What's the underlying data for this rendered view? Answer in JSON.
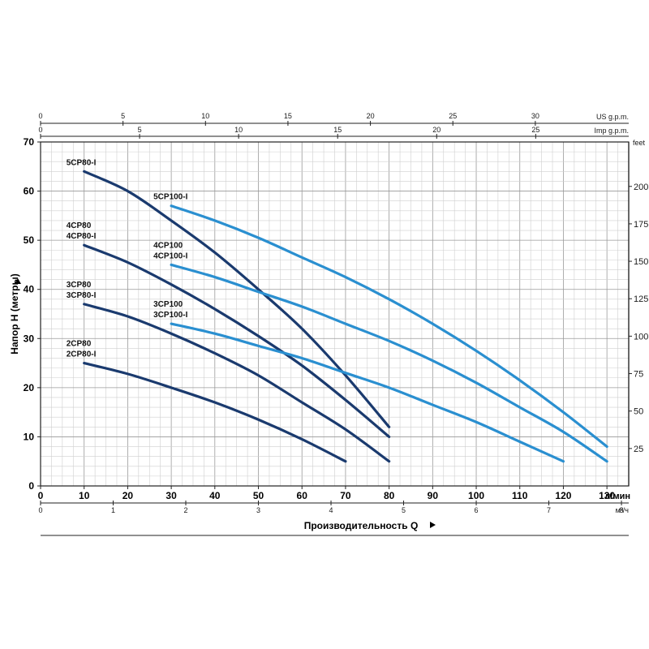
{
  "chart_data": {
    "type": "line",
    "ylabel": "Напор H (метры)",
    "xlabel": "Производительность Q",
    "x_unit": "л/мин",
    "xlim": [
      0,
      135
    ],
    "ylim": [
      0,
      70
    ],
    "x_ticks": [
      0,
      10,
      20,
      30,
      40,
      50,
      60,
      70,
      80,
      90,
      100,
      110,
      120,
      130
    ],
    "y_ticks": [
      0,
      10,
      20,
      30,
      40,
      50,
      60,
      70
    ],
    "grid": true,
    "secondary_axes": {
      "feet": {
        "unit": "feet",
        "ticks": [
          "25",
          "50",
          "75",
          "100",
          "125",
          "150",
          "175",
          "200"
        ]
      },
      "us_gpm": {
        "unit": "US g.p.m.",
        "ticks": [
          "0",
          "5",
          "10",
          "15",
          "20",
          "25",
          "30"
        ]
      },
      "imp_gpm": {
        "unit": "Imp g.p.m.",
        "ticks": [
          "0",
          "5",
          "10",
          "15",
          "20",
          "25"
        ]
      },
      "m3h": {
        "unit": "м³/ч",
        "ticks": [
          "0",
          "1",
          "2",
          "3",
          "4",
          "5",
          "6",
          "7",
          "8"
        ]
      }
    },
    "series": [
      {
        "name": "5CP80-I",
        "label_lines": [
          "5CP80-I"
        ],
        "color": "#1a3a6e",
        "x": [
          10,
          20,
          30,
          40,
          50,
          60,
          70,
          80
        ],
        "y": [
          64,
          60,
          54,
          47.5,
          40,
          32,
          22.5,
          12
        ]
      },
      {
        "name": "4CP80 / 4CP80-I",
        "label_lines": [
          "4CP80",
          "4CP80-I"
        ],
        "color": "#1a3a6e",
        "x": [
          10,
          20,
          30,
          40,
          50,
          60,
          70,
          80
        ],
        "y": [
          49,
          45.5,
          41,
          36,
          30.5,
          24.5,
          17.5,
          10
        ]
      },
      {
        "name": "3CP80 / 3CP80-I",
        "label_lines": [
          "3CP80",
          "3CP80-I"
        ],
        "color": "#1a3a6e",
        "x": [
          10,
          20,
          30,
          40,
          50,
          60,
          70,
          80
        ],
        "y": [
          37,
          34.5,
          31,
          27,
          22.5,
          17,
          11.5,
          5
        ]
      },
      {
        "name": "2CP80 / 2CP80-I",
        "label_lines": [
          "2CP80",
          "2CP80-I"
        ],
        "color": "#1a3a6e",
        "x": [
          10,
          20,
          30,
          40,
          50,
          60,
          70
        ],
        "y": [
          25,
          22.8,
          20,
          17,
          13.5,
          9.5,
          5
        ]
      },
      {
        "name": "5CP100-I",
        "label_lines": [
          "5CP100-I"
        ],
        "color": "#2a8fd0",
        "x": [
          30,
          40,
          50,
          60,
          70,
          80,
          90,
          100,
          110,
          120,
          130
        ],
        "y": [
          57,
          54,
          50.5,
          46.5,
          42.5,
          38,
          33,
          27.5,
          21.5,
          15,
          8
        ]
      },
      {
        "name": "4CP100 / 4CP100-I",
        "label_lines": [
          "4CP100",
          "4CP100-I"
        ],
        "color": "#2a8fd0",
        "x": [
          30,
          40,
          50,
          60,
          70,
          80,
          90,
          100,
          110,
          120,
          130
        ],
        "y": [
          45,
          42.5,
          39.5,
          36.5,
          33,
          29.5,
          25.5,
          21,
          16,
          11,
          5
        ]
      },
      {
        "name": "3CP100 / 3CP100-I",
        "label_lines": [
          "3CP100",
          "3CP100-I"
        ],
        "color": "#2a8fd0",
        "x": [
          30,
          40,
          50,
          60,
          70,
          80,
          90,
          100,
          110,
          120
        ],
        "y": [
          33,
          31,
          28.5,
          26,
          23,
          20,
          16.5,
          13,
          9,
          5
        ]
      }
    ]
  }
}
